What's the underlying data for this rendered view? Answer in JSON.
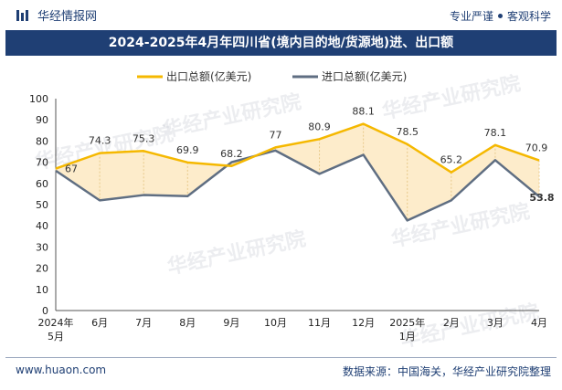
{
  "header": {
    "brand": "华经情报网",
    "tagline_left": "专业严谨",
    "tagline_right": "客观科学"
  },
  "title": "2024-2025年4月年四川省(境内目的地/货源地)进、出口额",
  "footer": {
    "website": "www.huaon.com",
    "source": "数据来源：中国海关，华经产业研究院整理"
  },
  "watermark": "华经产业研究院",
  "colors": {
    "export": "#f5b800",
    "import": "#5f6e82",
    "fill": "#fdeccb",
    "brand": "#1f3f74"
  },
  "chart_data": {
    "type": "line",
    "categories": [
      "2024年\n5月",
      "6月",
      "7月",
      "8月",
      "9月",
      "10月",
      "11月",
      "12月",
      "2025年\n1月",
      "2月",
      "3月",
      "4月"
    ],
    "series": [
      {
        "name": "出口总额(亿美元)",
        "values": [
          67,
          74.3,
          75.3,
          69.9,
          68.2,
          77,
          80.9,
          88.1,
          78.5,
          65.2,
          78.1,
          70.9
        ]
      },
      {
        "name": "进口总额(亿美元)",
        "values": [
          66,
          52,
          54.5,
          54,
          70,
          75.5,
          64.5,
          73.5,
          42.5,
          52,
          71,
          53.8
        ]
      }
    ],
    "data_labels": {
      "export": [
        "67",
        "74.3",
        "75.3",
        "69.9",
        "68.2",
        "77",
        "80.9",
        "88.1",
        "78.5",
        "65.2",
        "78.1",
        "70.9"
      ],
      "import_last": "53.8"
    },
    "yticks": [
      "0",
      "10",
      "20",
      "30",
      "40",
      "50",
      "60",
      "70",
      "80",
      "90",
      "100"
    ],
    "ylim": [
      0,
      100
    ],
    "legend": "top-center",
    "grid": false
  }
}
